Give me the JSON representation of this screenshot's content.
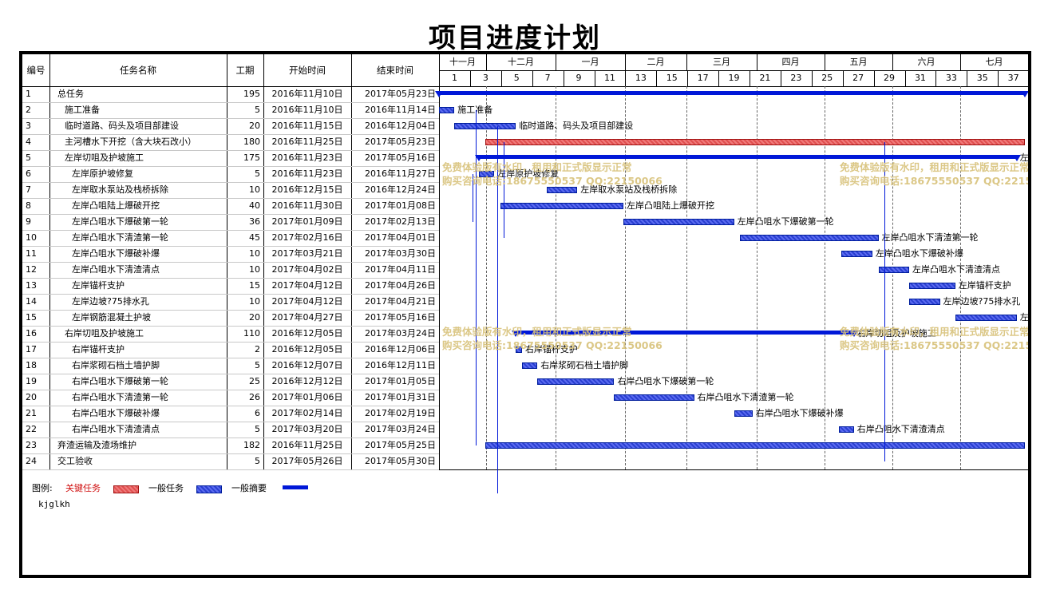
{
  "title": "项目进度计划",
  "headers": {
    "id": "编号",
    "name": "任务名称",
    "duration": "工期",
    "start": "开始时间",
    "end": "结束时间"
  },
  "months": [
    "十一月",
    "十二月",
    "一月",
    "二月",
    "三月",
    "四月",
    "五月",
    "六月",
    "七月"
  ],
  "scale": [
    "1",
    "3",
    "5",
    "7",
    "9",
    "11",
    "13",
    "15",
    "17",
    "19",
    "21",
    "23",
    "25",
    "27",
    "29",
    "31",
    "33",
    "35",
    "37"
  ],
  "tasks": [
    {
      "id": "1",
      "name": "总任务",
      "indent": 0,
      "duration": "195",
      "start": "2016年11月10日",
      "end": "2017年05月23日",
      "type": "summary",
      "bar_label": "总任务"
    },
    {
      "id": "2",
      "name": "施工准备",
      "indent": 1,
      "duration": "5",
      "start": "2016年11月10日",
      "end": "2016年11月14日",
      "type": "task",
      "bar_label": "施工准备"
    },
    {
      "id": "3",
      "name": "临时道路、码头及项目部建设",
      "indent": 1,
      "duration": "20",
      "start": "2016年11月15日",
      "end": "2016年12月04日",
      "type": "task",
      "bar_label": "临时道路、码头及项目部建设"
    },
    {
      "id": "4",
      "name": "主河槽水下开挖（含大块石改小）",
      "indent": 1,
      "duration": "180",
      "start": "2016年11月25日",
      "end": "2017年05月23日",
      "type": "critical",
      "bar_label": "主河槽水下开挖（含大块石改小）"
    },
    {
      "id": "5",
      "name": "左岸切咀及护坡施工",
      "indent": 1,
      "duration": "175",
      "start": "2016年11月23日",
      "end": "2017年05月16日",
      "type": "summary",
      "bar_label": "左岸切咀及护坡施工"
    },
    {
      "id": "6",
      "name": "左岸原护坡修复",
      "indent": 2,
      "duration": "5",
      "start": "2016年11月23日",
      "end": "2016年11月27日",
      "type": "task",
      "bar_label": "左岸原护坡修复"
    },
    {
      "id": "7",
      "name": "左岸取水泵站及栈桥拆除",
      "indent": 2,
      "duration": "10",
      "start": "2016年12月15日",
      "end": "2016年12月24日",
      "type": "task",
      "bar_label": "左岸取水泵站及栈桥拆除"
    },
    {
      "id": "8",
      "name": "左岸凸咀陆上爆破开挖",
      "indent": 2,
      "duration": "40",
      "start": "2016年11月30日",
      "end": "2017年01月08日",
      "type": "task",
      "bar_label": "左岸凸咀陆上爆破开挖"
    },
    {
      "id": "9",
      "name": "左岸凸咀水下爆破第一轮",
      "indent": 2,
      "duration": "36",
      "start": "2017年01月09日",
      "end": "2017年02月13日",
      "type": "task",
      "bar_label": "左岸凸咀水下爆破第一轮"
    },
    {
      "id": "10",
      "name": "左岸凸咀水下清渣第一轮",
      "indent": 2,
      "duration": "45",
      "start": "2017年02月16日",
      "end": "2017年04月01日",
      "type": "task",
      "bar_label": "左岸凸咀水下清渣第一轮"
    },
    {
      "id": "11",
      "name": "左岸凸咀水下爆破补爆",
      "indent": 2,
      "duration": "10",
      "start": "2017年03月21日",
      "end": "2017年03月30日",
      "type": "task",
      "bar_label": "左岸凸咀水下爆破补爆"
    },
    {
      "id": "12",
      "name": "左岸凸咀水下清渣清点",
      "indent": 2,
      "duration": "10",
      "start": "2017年04月02日",
      "end": "2017年04月11日",
      "type": "task",
      "bar_label": "左岸凸咀水下清渣清点"
    },
    {
      "id": "13",
      "name": "左岸锚杆支护",
      "indent": 2,
      "duration": "15",
      "start": "2017年04月12日",
      "end": "2017年04月26日",
      "type": "task",
      "bar_label": "左岸锚杆支护"
    },
    {
      "id": "14",
      "name": "左岸边坡?75排水孔",
      "indent": 2,
      "duration": "10",
      "start": "2017年04月12日",
      "end": "2017年04月21日",
      "type": "task",
      "bar_label": "左岸边坡?75排水孔"
    },
    {
      "id": "15",
      "name": "左岸钢筋混凝土护坡",
      "indent": 2,
      "duration": "20",
      "start": "2017年04月27日",
      "end": "2017年05月16日",
      "type": "task",
      "bar_label": "左岸钢筋混凝土护坡"
    },
    {
      "id": "16",
      "name": "右岸切咀及护坡施工",
      "indent": 1,
      "duration": "110",
      "start": "2016年12月05日",
      "end": "2017年03月24日",
      "type": "summary",
      "bar_label": "右岸切咀及护坡施工"
    },
    {
      "id": "17",
      "name": "右岸锚杆支护",
      "indent": 2,
      "duration": "2",
      "start": "2016年12月05日",
      "end": "2016年12月06日",
      "type": "task",
      "bar_label": "右岸锚杆支护"
    },
    {
      "id": "18",
      "name": "右岸浆砌石档土墙护脚",
      "indent": 2,
      "duration": "5",
      "start": "2016年12月07日",
      "end": "2016年12月11日",
      "type": "task",
      "bar_label": "右岸浆砌石档土墙护脚"
    },
    {
      "id": "19",
      "name": "右岸凸咀水下爆破第一轮",
      "indent": 2,
      "duration": "25",
      "start": "2016年12月12日",
      "end": "2017年01月05日",
      "type": "task",
      "bar_label": "右岸凸咀水下爆破第一轮"
    },
    {
      "id": "20",
      "name": "右岸凸咀水下清渣第一轮",
      "indent": 2,
      "duration": "26",
      "start": "2017年01月06日",
      "end": "2017年01月31日",
      "type": "task",
      "bar_label": "右岸凸咀水下清渣第一轮"
    },
    {
      "id": "21",
      "name": "右岸凸咀水下爆破补爆",
      "indent": 2,
      "duration": "6",
      "start": "2017年02月14日",
      "end": "2017年02月19日",
      "type": "task",
      "bar_label": "右岸凸咀水下爆破补爆"
    },
    {
      "id": "22",
      "name": "右岸凸咀水下清渣清点",
      "indent": 2,
      "duration": "5",
      "start": "2017年03月20日",
      "end": "2017年03月24日",
      "type": "task",
      "bar_label": "右岸凸咀水下清渣清点"
    },
    {
      "id": "23",
      "name": "弃渣运输及渣场维护",
      "indent": 0,
      "duration": "182",
      "start": "2016年11月25日",
      "end": "2017年05月25日",
      "type": "task",
      "bar_label": "弃渣运输及渣场维护"
    },
    {
      "id": "24",
      "name": "交工验收",
      "indent": 0,
      "duration": "5",
      "start": "2017年05月26日",
      "end": "2017年05月30日",
      "type": "task",
      "bar_label": "交工验收"
    }
  ],
  "watermark": {
    "line1": "免费体验版有水印，租用和正式版显示正常",
    "line2": "购买咨询电话:18675550537 QQ:22150066"
  },
  "legend": {
    "label": "图例:",
    "critical": "关键任务",
    "task": "一般任务",
    "summary": "一般摘要",
    "critical_color": "#d94040"
  },
  "note": "kjglkh"
}
